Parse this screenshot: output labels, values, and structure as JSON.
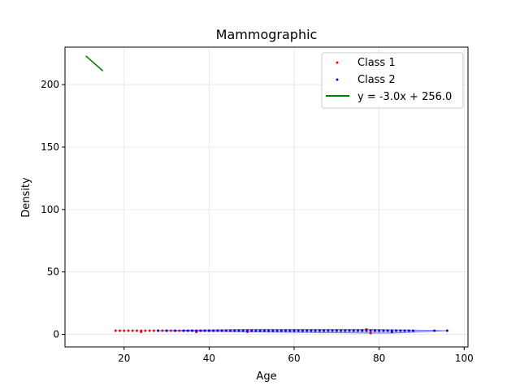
{
  "chart_data": {
    "type": "scatter",
    "title": "Mammographic",
    "xlabel": "Age",
    "ylabel": "Density",
    "xlim": [
      6.1,
      100.9
    ],
    "ylim": [
      -10.05,
      230.05
    ],
    "xticks": [
      20,
      40,
      60,
      80,
      100
    ],
    "yticks": [
      0,
      50,
      100,
      150,
      200
    ],
    "grid": true,
    "legend_position": "top-right",
    "series": [
      {
        "name": "Class 1",
        "color": "#ff0000",
        "points": [
          [
            18,
            3
          ],
          [
            19,
            3
          ],
          [
            20,
            3
          ],
          [
            21,
            3
          ],
          [
            22,
            3
          ],
          [
            23,
            3
          ],
          [
            24,
            2
          ],
          [
            24,
            3
          ],
          [
            25,
            3
          ],
          [
            26,
            3
          ],
          [
            27,
            3
          ],
          [
            28,
            3
          ],
          [
            29,
            3
          ],
          [
            30,
            3
          ],
          [
            31,
            3
          ],
          [
            32,
            3
          ],
          [
            33,
            3
          ],
          [
            34,
            3
          ],
          [
            35,
            3
          ],
          [
            36,
            3
          ],
          [
            37,
            2
          ],
          [
            38,
            3
          ],
          [
            39,
            3
          ],
          [
            40,
            3
          ],
          [
            41,
            3
          ],
          [
            42,
            3
          ],
          [
            43,
            3
          ],
          [
            44,
            3
          ],
          [
            45,
            3
          ],
          [
            46,
            3
          ],
          [
            47,
            3
          ],
          [
            48,
            3
          ],
          [
            49,
            2
          ],
          [
            50,
            3
          ],
          [
            51,
            3
          ],
          [
            52,
            3
          ],
          [
            53,
            3
          ],
          [
            54,
            3
          ],
          [
            55,
            3
          ],
          [
            56,
            3
          ],
          [
            57,
            3
          ],
          [
            58,
            3
          ],
          [
            59,
            3
          ],
          [
            60,
            3
          ],
          [
            62,
            3
          ],
          [
            64,
            3
          ],
          [
            65,
            3
          ],
          [
            67,
            3
          ],
          [
            70,
            3
          ],
          [
            72,
            3
          ],
          [
            74,
            3
          ],
          [
            76,
            3
          ],
          [
            77,
            4
          ],
          [
            78,
            1
          ],
          [
            79,
            3
          ]
        ]
      },
      {
        "name": "Class 2",
        "color": "#0000ff",
        "points": [
          [
            28,
            3
          ],
          [
            30,
            3
          ],
          [
            32,
            3
          ],
          [
            34,
            3
          ],
          [
            35,
            3
          ],
          [
            36,
            3
          ],
          [
            37,
            3
          ],
          [
            38,
            3
          ],
          [
            39,
            3
          ],
          [
            40,
            3
          ],
          [
            41,
            3
          ],
          [
            42,
            3
          ],
          [
            43,
            3
          ],
          [
            44,
            3
          ],
          [
            45,
            3
          ],
          [
            46,
            3
          ],
          [
            47,
            3
          ],
          [
            48,
            3
          ],
          [
            49,
            3
          ],
          [
            50,
            3
          ],
          [
            51,
            3
          ],
          [
            52,
            3
          ],
          [
            53,
            3
          ],
          [
            54,
            3
          ],
          [
            55,
            3
          ],
          [
            56,
            3
          ],
          [
            57,
            3
          ],
          [
            58,
            3
          ],
          [
            59,
            3
          ],
          [
            60,
            3
          ],
          [
            61,
            3
          ],
          [
            62,
            3
          ],
          [
            63,
            3
          ],
          [
            64,
            3
          ],
          [
            65,
            3
          ],
          [
            66,
            3
          ],
          [
            67,
            3
          ],
          [
            68,
            3
          ],
          [
            69,
            3
          ],
          [
            70,
            3
          ],
          [
            71,
            3
          ],
          [
            72,
            3
          ],
          [
            73,
            3
          ],
          [
            74,
            3
          ],
          [
            75,
            3
          ],
          [
            76,
            3
          ],
          [
            77,
            3
          ],
          [
            78,
            3
          ],
          [
            79,
            3
          ],
          [
            80,
            3
          ],
          [
            81,
            3
          ],
          [
            82,
            3
          ],
          [
            83,
            2
          ],
          [
            83,
            3
          ],
          [
            84,
            3
          ],
          [
            85,
            3
          ],
          [
            86,
            3
          ],
          [
            87,
            3
          ],
          [
            88,
            3
          ],
          [
            93,
            3
          ],
          [
            96,
            3
          ]
        ]
      }
    ],
    "hull": {
      "color": "#0000ff",
      "points": [
        [
          28,
          3
        ],
        [
          50,
          4
        ],
        [
          77,
          4
        ],
        [
          96,
          3
        ],
        [
          83,
          1
        ],
        [
          78,
          1
        ],
        [
          50,
          2
        ]
      ]
    },
    "line": {
      "name": "y = -3.0x + 256.0",
      "color": "#008000",
      "x": [
        11,
        15
      ],
      "y": [
        223,
        211
      ]
    }
  }
}
